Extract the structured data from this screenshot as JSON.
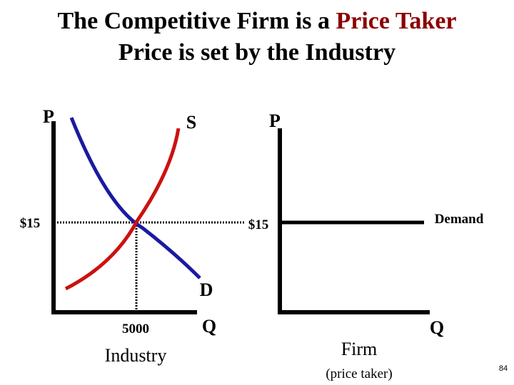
{
  "header": {
    "title_line1": "The Competitive Firm is a",
    "title_highlight": "Price Taker",
    "title_line2": "Price is set by the Industry"
  },
  "industry": {
    "y_axis_label": "P",
    "x_axis_label": "Q",
    "supply_label": "S",
    "demand_label": "D",
    "price_label": "$15",
    "quantity_label": "5000",
    "caption": "Industry"
  },
  "firm": {
    "y_axis_label": "P",
    "x_axis_label": "Q",
    "price_label": "$15",
    "demand_label": "Demand",
    "caption": "Firm",
    "subcaption": "(price taker)"
  },
  "page_number": "84"
}
